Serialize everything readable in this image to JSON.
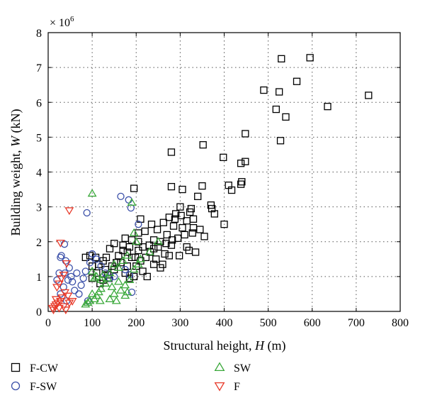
{
  "chart_data": {
    "type": "scatter",
    "xlabel_text": "Structural height, ",
    "xlabel_var": "H",
    "xlabel_unit": " (m)",
    "ylabel_text": "Building weight, ",
    "ylabel_var": "W",
    "ylabel_unit": " (kN)",
    "y_multiplier": "× 10",
    "y_multiplier_exp": "6",
    "xlim": [
      0,
      800
    ],
    "ylim": [
      0,
      8
    ],
    "x_ticks": [
      0,
      100,
      200,
      300,
      400,
      500,
      600,
      700,
      800
    ],
    "y_ticks": [
      0,
      1,
      2,
      3,
      4,
      5,
      6,
      7,
      8
    ],
    "grid": "dotted",
    "legend_position": "bottom",
    "series": [
      {
        "name": "F-CW",
        "marker": "square",
        "color": "#000000",
        "points": [
          [
            530,
            7.25
          ],
          [
            595,
            7.28
          ],
          [
            565,
            6.6
          ],
          [
            490,
            6.35
          ],
          [
            525,
            6.3
          ],
          [
            728,
            6.2
          ],
          [
            635,
            5.88
          ],
          [
            518,
            5.8
          ],
          [
            540,
            5.58
          ],
          [
            448,
            5.1
          ],
          [
            528,
            4.9
          ],
          [
            352,
            4.78
          ],
          [
            280,
            4.57
          ],
          [
            398,
            4.42
          ],
          [
            448,
            4.3
          ],
          [
            438,
            4.25
          ],
          [
            440,
            3.72
          ],
          [
            438,
            3.65
          ],
          [
            410,
            3.62
          ],
          [
            417,
            3.48
          ],
          [
            350,
            3.6
          ],
          [
            195,
            3.53
          ],
          [
            280,
            3.58
          ],
          [
            305,
            3.5
          ],
          [
            340,
            3.3
          ],
          [
            370,
            3.05
          ],
          [
            372,
            2.95
          ],
          [
            378,
            2.8
          ],
          [
            400,
            2.5
          ],
          [
            355,
            2.15
          ],
          [
            328,
            2.25
          ],
          [
            320,
            1.75
          ],
          [
            330,
            2.65
          ],
          [
            325,
            2.95
          ],
          [
            300,
            3.0
          ],
          [
            290,
            2.8
          ],
          [
            285,
            2.45
          ],
          [
            270,
            2.2
          ],
          [
            255,
            2.0
          ],
          [
            240,
            1.8
          ],
          [
            230,
            1.9
          ],
          [
            220,
            2.3
          ],
          [
            210,
            2.65
          ],
          [
            205,
            2.25
          ],
          [
            205,
            2.0
          ],
          [
            190,
            1.55
          ],
          [
            180,
            1.7
          ],
          [
            170,
            1.9
          ],
          [
            160,
            1.6
          ],
          [
            150,
            1.95
          ],
          [
            140,
            1.8
          ],
          [
            132,
            1.55
          ],
          [
            130,
            1.2
          ],
          [
            125,
            1.45
          ],
          [
            115,
            1.35
          ],
          [
            110,
            1.1
          ],
          [
            100,
            1.3
          ],
          [
            95,
            1.6
          ],
          [
            100,
            0.95
          ],
          [
            118,
            0.8
          ],
          [
            135,
            1.05
          ],
          [
            150,
            1.2
          ],
          [
            165,
            1.4
          ],
          [
            175,
            1.1
          ],
          [
            185,
            0.95
          ],
          [
            200,
            1.3
          ],
          [
            215,
            1.15
          ],
          [
            225,
            1.0
          ],
          [
            245,
            1.5
          ],
          [
            260,
            1.35
          ],
          [
            275,
            1.6
          ],
          [
            298,
            1.6
          ],
          [
            315,
            1.85
          ],
          [
            335,
            1.7
          ],
          [
            345,
            2.35
          ],
          [
            305,
            2.4
          ],
          [
            295,
            2.1
          ],
          [
            280,
            1.9
          ],
          [
            265,
            1.65
          ],
          [
            250,
            1.85
          ],
          [
            240,
            2.05
          ],
          [
            232,
            1.7
          ],
          [
            222,
            1.55
          ],
          [
            210,
            1.45
          ],
          [
            198,
            1.55
          ],
          [
            195,
            1.0
          ],
          [
            180,
            1.3
          ],
          [
            170,
            1.75
          ],
          [
            155,
            1.4
          ],
          [
            145,
            1.3
          ],
          [
            138,
            0.95
          ],
          [
            125,
            0.9
          ],
          [
            108,
            1.55
          ],
          [
            85,
            1.55
          ],
          [
            215,
            1.85
          ],
          [
            235,
            2.5
          ],
          [
            248,
            2.35
          ],
          [
            262,
            2.55
          ],
          [
            275,
            2.7
          ],
          [
            288,
            2.65
          ],
          [
            302,
            2.75
          ],
          [
            315,
            2.6
          ],
          [
            322,
            2.85
          ],
          [
            310,
            2.2
          ],
          [
            330,
            2.4
          ],
          [
            255,
            1.25
          ],
          [
            240,
            1.35
          ],
          [
            268,
            1.95
          ],
          [
            282,
            2.05
          ],
          [
            190,
            2.05
          ],
          [
            175,
            2.1
          ],
          [
            205,
            1.75
          ],
          [
            185,
            1.85
          ]
        ]
      },
      {
        "name": "F-SW",
        "marker": "circle",
        "color": "#3a4fa8",
        "points": [
          [
            88,
            2.83
          ],
          [
            165,
            3.3
          ],
          [
            183,
            3.2
          ],
          [
            188,
            2.97
          ],
          [
            205,
            2.5
          ],
          [
            37,
            1.93
          ],
          [
            30,
            1.6
          ],
          [
            28,
            1.55
          ],
          [
            40,
            1.45
          ],
          [
            48,
            1.25
          ],
          [
            52,
            1.0
          ],
          [
            55,
            0.85
          ],
          [
            60,
            0.6
          ],
          [
            45,
            0.9
          ],
          [
            38,
            1.1
          ],
          [
            25,
            1.1
          ],
          [
            20,
            0.9
          ],
          [
            35,
            0.7
          ],
          [
            80,
            0.95
          ],
          [
            85,
            1.15
          ],
          [
            95,
            1.4
          ],
          [
            100,
            1.65
          ],
          [
            110,
            1.5
          ],
          [
            120,
            1.3
          ],
          [
            130,
            1.1
          ],
          [
            140,
            0.95
          ],
          [
            150,
            1.0
          ],
          [
            175,
            1.2
          ],
          [
            185,
            1.05
          ],
          [
            190,
            0.55
          ],
          [
            70,
            0.5
          ],
          [
            75,
            0.75
          ],
          [
            90,
            0.3
          ],
          [
            65,
            1.1
          ],
          [
            42,
            0.3
          ],
          [
            28,
            0.5
          ]
        ]
      },
      {
        "name": "SW",
        "marker": "triangle-up",
        "color": "#3aa83a",
        "points": [
          [
            100,
            3.38
          ],
          [
            190,
            3.12
          ],
          [
            195,
            2.25
          ],
          [
            200,
            2.0
          ],
          [
            250,
            2.0
          ],
          [
            180,
            1.6
          ],
          [
            170,
            1.45
          ],
          [
            160,
            1.25
          ],
          [
            150,
            1.35
          ],
          [
            140,
            1.1
          ],
          [
            135,
            0.95
          ],
          [
            130,
            0.8
          ],
          [
            120,
            0.65
          ],
          [
            115,
            0.55
          ],
          [
            110,
            0.45
          ],
          [
            105,
            0.35
          ],
          [
            100,
            0.5
          ],
          [
            95,
            0.3
          ],
          [
            90,
            0.25
          ],
          [
            85,
            0.2
          ],
          [
            100,
            1.15
          ],
          [
            105,
            0.95
          ],
          [
            110,
            1.0
          ],
          [
            120,
            0.9
          ],
          [
            125,
            1.05
          ],
          [
            145,
            0.7
          ],
          [
            150,
            0.5
          ],
          [
            160,
            0.85
          ],
          [
            165,
            0.6
          ],
          [
            175,
            0.75
          ],
          [
            185,
            0.9
          ],
          [
            195,
            1.2
          ],
          [
            205,
            1.35
          ],
          [
            210,
            1.5
          ],
          [
            230,
            1.7
          ],
          [
            155,
            0.3
          ],
          [
            140,
            0.35
          ],
          [
            175,
            0.45
          ],
          [
            180,
            0.55
          ],
          [
            118,
            0.3
          ]
        ]
      },
      {
        "name": "F",
        "marker": "triangle-down",
        "color": "#e83a2a",
        "points": [
          [
            48,
            2.9
          ],
          [
            28,
            1.97
          ],
          [
            42,
            1.38
          ],
          [
            35,
            1.05
          ],
          [
            30,
            0.95
          ],
          [
            25,
            0.8
          ],
          [
            20,
            0.7
          ],
          [
            38,
            0.55
          ],
          [
            45,
            0.45
          ],
          [
            32,
            0.4
          ],
          [
            28,
            0.3
          ],
          [
            22,
            0.25
          ],
          [
            18,
            0.2
          ],
          [
            15,
            0.15
          ],
          [
            10,
            0.1
          ],
          [
            12,
            0.05
          ],
          [
            25,
            0.1
          ],
          [
            35,
            0.15
          ],
          [
            40,
            0.05
          ],
          [
            48,
            0.25
          ],
          [
            55,
            0.3
          ],
          [
            18,
            0.35
          ]
        ]
      }
    ]
  }
}
